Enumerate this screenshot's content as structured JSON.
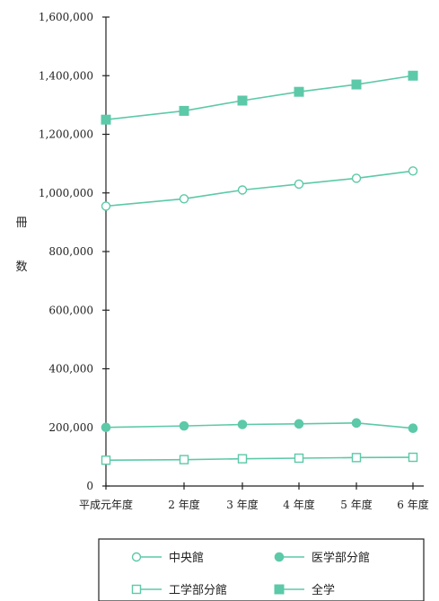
{
  "chart_data": {
    "type": "line",
    "categories": [
      "平成元年度",
      "2 年度",
      "3 年度",
      "4 年度",
      "5 年度",
      "6 年度"
    ],
    "ylabel": "冊数",
    "ylabel_chars": [
      "冊",
      "数"
    ],
    "ylim": [
      0,
      1600000
    ],
    "yticks": [
      0,
      200000,
      400000,
      600000,
      800000,
      1000000,
      1200000,
      1400000,
      1600000
    ],
    "ytick_labels": [
      "0",
      "200,000",
      "400,000",
      "600,000",
      "800,000",
      "1,000,000",
      "1,200,000",
      "1,400,000",
      "1,600,000"
    ],
    "grid": false,
    "legend_position": "bottom",
    "line_color": "#5cc9a8",
    "series": [
      {
        "name": "全学",
        "marker": "square-filled",
        "values": [
          1250000,
          1280000,
          1315000,
          1345000,
          1370000,
          1400000
        ]
      },
      {
        "name": "中央館",
        "marker": "circle-open",
        "values": [
          955000,
          980000,
          1010000,
          1030000,
          1050000,
          1075000
        ]
      },
      {
        "name": "医学部分館",
        "marker": "circle-filled",
        "values": [
          200000,
          205000,
          210000,
          212000,
          215000,
          197000
        ]
      },
      {
        "name": "工学部分館",
        "marker": "square-open",
        "values": [
          88000,
          90000,
          93000,
          95000,
          97000,
          98000
        ]
      }
    ],
    "legend": [
      {
        "name": "中央館",
        "marker": "circle-open"
      },
      {
        "name": "医学部分館",
        "marker": "circle-filled"
      },
      {
        "name": "工学部分館",
        "marker": "square-open"
      },
      {
        "name": "全学",
        "marker": "square-filled"
      }
    ]
  }
}
